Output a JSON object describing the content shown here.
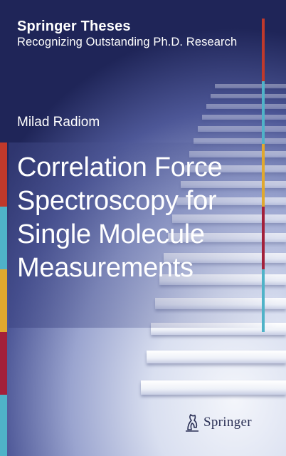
{
  "series": {
    "title": "Springer Theses",
    "subtitle": "Recognizing Outstanding Ph.D. Research"
  },
  "author": "Milad Radiom",
  "book": {
    "title_lines": [
      "Correlation Force",
      "Spectroscopy for",
      "Single Molecule",
      "Measurements"
    ]
  },
  "publisher": {
    "name": "Springer",
    "logo_icon": "springer-horse-icon"
  },
  "colors": {
    "strip_red": "#c0392b",
    "strip_teal": "#4fb3c8",
    "strip_yellow": "#e0a82e",
    "strip_crimson": "#a3203a",
    "background_dark": "#1f2558",
    "background_light": "#e9edf7"
  }
}
